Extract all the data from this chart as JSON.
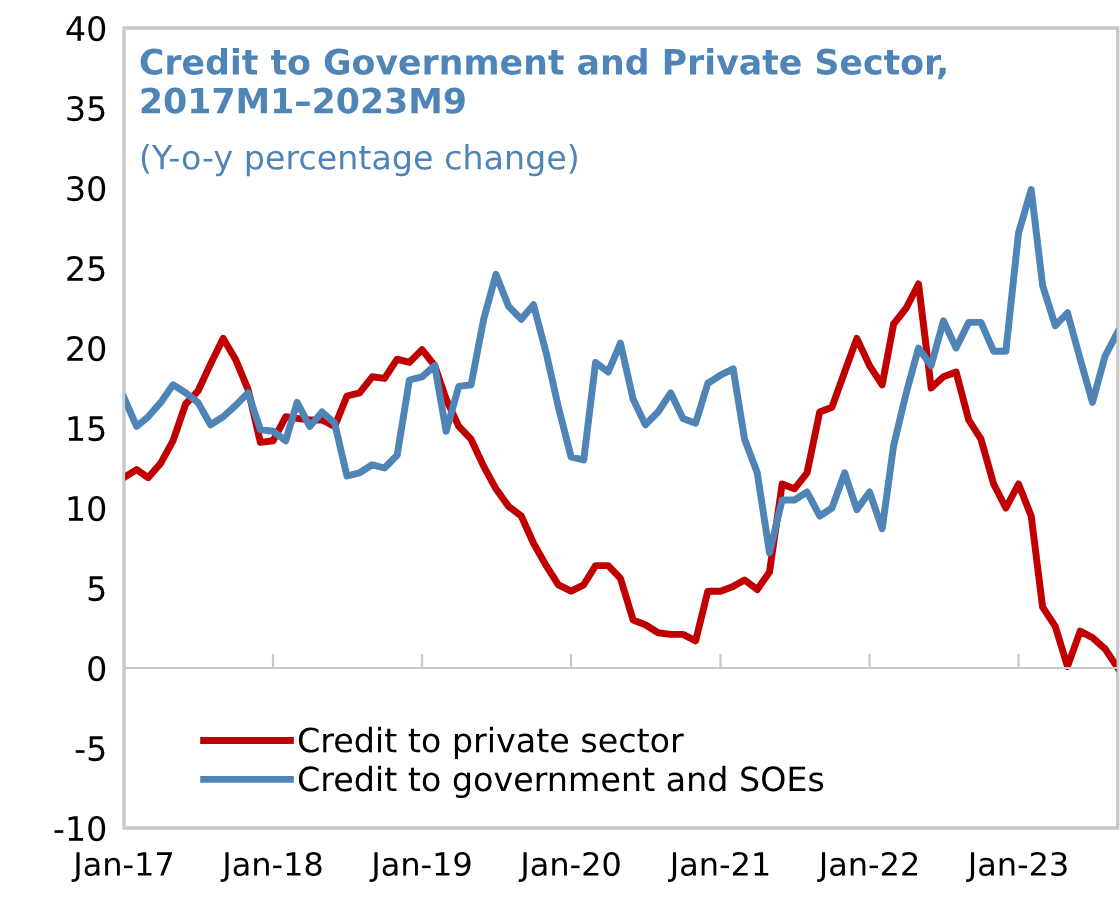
{
  "chart_data": {
    "type": "line",
    "title": "Credit to Government and Private Sector,\n2017M1–2023M9",
    "subtitle": "(Y-o-y percentage change)",
    "x": [
      "2017-01",
      "2017-02",
      "2017-03",
      "2017-04",
      "2017-05",
      "2017-06",
      "2017-07",
      "2017-08",
      "2017-09",
      "2017-10",
      "2017-11",
      "2017-12",
      "2018-01",
      "2018-02",
      "2018-03",
      "2018-04",
      "2018-05",
      "2018-06",
      "2018-07",
      "2018-08",
      "2018-09",
      "2018-10",
      "2018-11",
      "2018-12",
      "2019-01",
      "2019-02",
      "2019-03",
      "2019-04",
      "2019-05",
      "2019-06",
      "2019-07",
      "2019-08",
      "2019-09",
      "2019-10",
      "2019-11",
      "2019-12",
      "2020-01",
      "2020-02",
      "2020-03",
      "2020-04",
      "2020-05",
      "2020-06",
      "2020-07",
      "2020-08",
      "2020-09",
      "2020-10",
      "2020-11",
      "2020-12",
      "2021-01",
      "2021-02",
      "2021-03",
      "2021-04",
      "2021-05",
      "2021-06",
      "2021-07",
      "2021-08",
      "2021-09",
      "2021-10",
      "2021-11",
      "2021-12",
      "2022-01",
      "2022-02",
      "2022-03",
      "2022-04",
      "2022-05",
      "2022-06",
      "2022-07",
      "2022-08",
      "2022-09",
      "2022-10",
      "2022-11",
      "2022-12",
      "2023-01",
      "2023-02",
      "2023-03",
      "2023-04",
      "2023-05",
      "2023-06",
      "2023-07",
      "2023-08",
      "2023-09"
    ],
    "series": [
      {
        "name": "Credit to private sector",
        "color": "#c00000",
        "values": [
          11.9,
          12.4,
          11.9,
          12.8,
          14.2,
          16.5,
          17.3,
          19.0,
          20.6,
          19.3,
          17.4,
          14.1,
          14.2,
          15.7,
          15.6,
          15.5,
          15.5,
          15.1,
          17.0,
          17.2,
          18.2,
          18.1,
          19.3,
          19.1,
          19.9,
          18.9,
          16.8,
          15.1,
          14.3,
          12.6,
          11.2,
          10.1,
          9.5,
          7.8,
          6.4,
          5.2,
          4.8,
          5.2,
          6.4,
          6.4,
          5.6,
          3.0,
          2.7,
          2.2,
          2.1,
          2.1,
          1.7,
          4.8,
          4.8,
          5.1,
          5.5,
          4.9,
          6.0,
          11.5,
          11.2,
          12.2,
          16.0,
          16.3,
          18.5,
          20.6,
          18.9,
          17.7,
          21.5,
          22.5,
          24.0,
          17.5,
          18.2,
          18.5,
          15.5,
          14.3,
          11.5,
          10.0,
          11.5,
          9.5,
          3.8,
          2.6,
          0.1,
          2.3,
          1.9,
          1.2,
          0.0
        ]
      },
      {
        "name": "Credit to government and SOEs",
        "color": "#4f84b6",
        "values": [
          16.9,
          15.1,
          15.7,
          16.6,
          17.7,
          17.2,
          16.6,
          15.2,
          15.7,
          16.4,
          17.2,
          14.9,
          14.8,
          14.2,
          16.6,
          15.1,
          16.0,
          15.3,
          12.0,
          12.2,
          12.7,
          12.5,
          13.3,
          18.0,
          18.2,
          18.9,
          14.8,
          17.6,
          17.7,
          21.8,
          24.6,
          22.6,
          21.8,
          22.7,
          19.7,
          16.3,
          13.2,
          13.0,
          19.1,
          18.5,
          20.3,
          16.8,
          15.2,
          16.0,
          17.2,
          15.6,
          15.3,
          17.8,
          18.3,
          18.7,
          14.3,
          12.2,
          7.2,
          10.5,
          10.5,
          11.0,
          9.5,
          10.0,
          12.2,
          9.9,
          11.0,
          8.7,
          13.9,
          17.2,
          20.0,
          18.9,
          21.7,
          20.0,
          21.6,
          21.6,
          19.8,
          19.8,
          27.2,
          29.9,
          23.9,
          21.4,
          22.2,
          19.3,
          16.6,
          19.5,
          21.0
        ]
      }
    ],
    "xlim": [
      "2017-01",
      "2023-09"
    ],
    "xticks": [
      {
        "value": "2017-01",
        "label": "Jan-17"
      },
      {
        "value": "2018-01",
        "label": "Jan-18"
      },
      {
        "value": "2019-01",
        "label": "Jan-19"
      },
      {
        "value": "2020-01",
        "label": "Jan-20"
      },
      {
        "value": "2021-01",
        "label": "Jan-21"
      },
      {
        "value": "2022-01",
        "label": "Jan-22"
      },
      {
        "value": "2023-01",
        "label": "Jan-23"
      }
    ],
    "ylim": [
      -10,
      40
    ],
    "yticks": [
      -10,
      -5,
      0,
      5,
      10,
      15,
      20,
      25,
      30,
      35,
      40
    ],
    "legend": "bottom left",
    "marker": "none",
    "line_style": "solid"
  }
}
